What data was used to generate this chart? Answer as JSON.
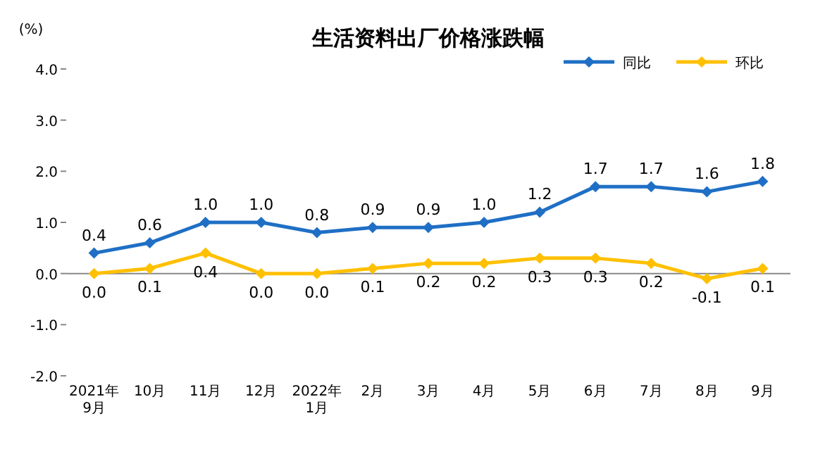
{
  "chart_data": {
    "type": "line",
    "title": "生活资料出厂价格涨跌幅",
    "ylabel": "(%)",
    "categories": [
      "2021年\n9月",
      "10月",
      "11月",
      "12月",
      "2022年\n1月",
      "2月",
      "3月",
      "4月",
      "5月",
      "6月",
      "7月",
      "8月",
      "9月"
    ],
    "series": [
      {
        "name": "同比",
        "color": "#1f6fc5",
        "values": [
          0.4,
          0.6,
          1.0,
          1.0,
          0.8,
          0.9,
          0.9,
          1.0,
          1.2,
          1.7,
          1.7,
          1.6,
          1.8
        ],
        "value_labels": [
          "0.4",
          "0.6",
          "1.0",
          "1.0",
          "0.8",
          "0.9",
          "0.9",
          "1.0",
          "1.2",
          "1.7",
          "1.7",
          "1.6",
          "1.8"
        ]
      },
      {
        "name": "环比",
        "color": "#ffc000",
        "values": [
          0.0,
          0.1,
          0.4,
          0.0,
          0.0,
          0.1,
          0.2,
          0.2,
          0.3,
          0.3,
          0.2,
          -0.1,
          0.1
        ],
        "value_labels": [
          "0.0",
          "0.1",
          "0.4",
          "0.0",
          "0.0",
          "0.1",
          "0.2",
          "0.2",
          "0.3",
          "0.3",
          "0.2",
          "-0.1",
          "0.1"
        ]
      }
    ],
    "ylim": [
      -2,
      4
    ],
    "yticks": [
      {
        "value": -2,
        "label": "-2.0"
      },
      {
        "value": -1,
        "label": "-1.0"
      },
      {
        "value": 0,
        "label": "0.0"
      },
      {
        "value": 1,
        "label": "1.0"
      },
      {
        "value": 2,
        "label": "2.0"
      },
      {
        "value": 3,
        "label": "3.0"
      },
      {
        "value": 4,
        "label": "4.0"
      }
    ],
    "legend": "top right",
    "marker": "diamond",
    "line_style": "solid"
  }
}
